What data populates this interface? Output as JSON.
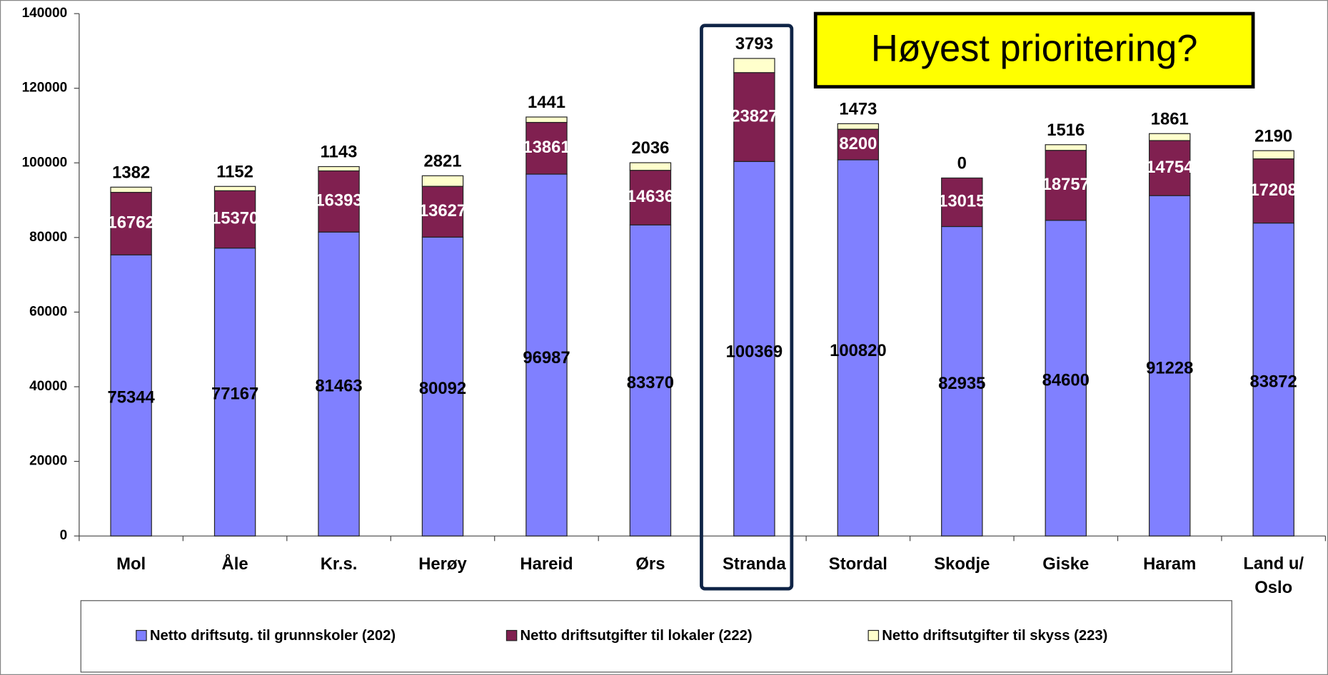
{
  "chart_data": {
    "type": "bar",
    "stacked": true,
    "categories": [
      "Mol",
      "Åle",
      "Kr.s.",
      "Herøy",
      "Hareid",
      "Ørs",
      "Stranda",
      "Stordal",
      "Skodje",
      "Giske",
      "Haram",
      "Land u/ Oslo"
    ],
    "series": [
      {
        "name": "Netto driftsutg. til grunnskoler (202)",
        "color": "#8080ff",
        "values": [
          75344,
          77167,
          81463,
          80092,
          96987,
          83370,
          100369,
          100820,
          82935,
          84600,
          91228,
          83872
        ]
      },
      {
        "name": "Netto driftsutgifter til lokaler (222)",
        "color": "#802050",
        "values": [
          16762,
          15370,
          16393,
          13627,
          13861,
          14636,
          23827,
          8200,
          13015,
          18757,
          14754,
          17208
        ]
      },
      {
        "name": "Netto driftsutgifter til skyss (223)",
        "color": "#ffffcc",
        "values": [
          1382,
          1152,
          1143,
          2821,
          1441,
          2036,
          3793,
          1473,
          0,
          1516,
          1861,
          2190
        ]
      }
    ],
    "ylim": [
      0,
      140000
    ],
    "yticks": [
      0,
      20000,
      40000,
      60000,
      80000,
      100000,
      120000,
      140000
    ],
    "grid": false,
    "legend": "bottom",
    "annotation": "Høyest prioritering?",
    "highlight": "Stranda"
  }
}
